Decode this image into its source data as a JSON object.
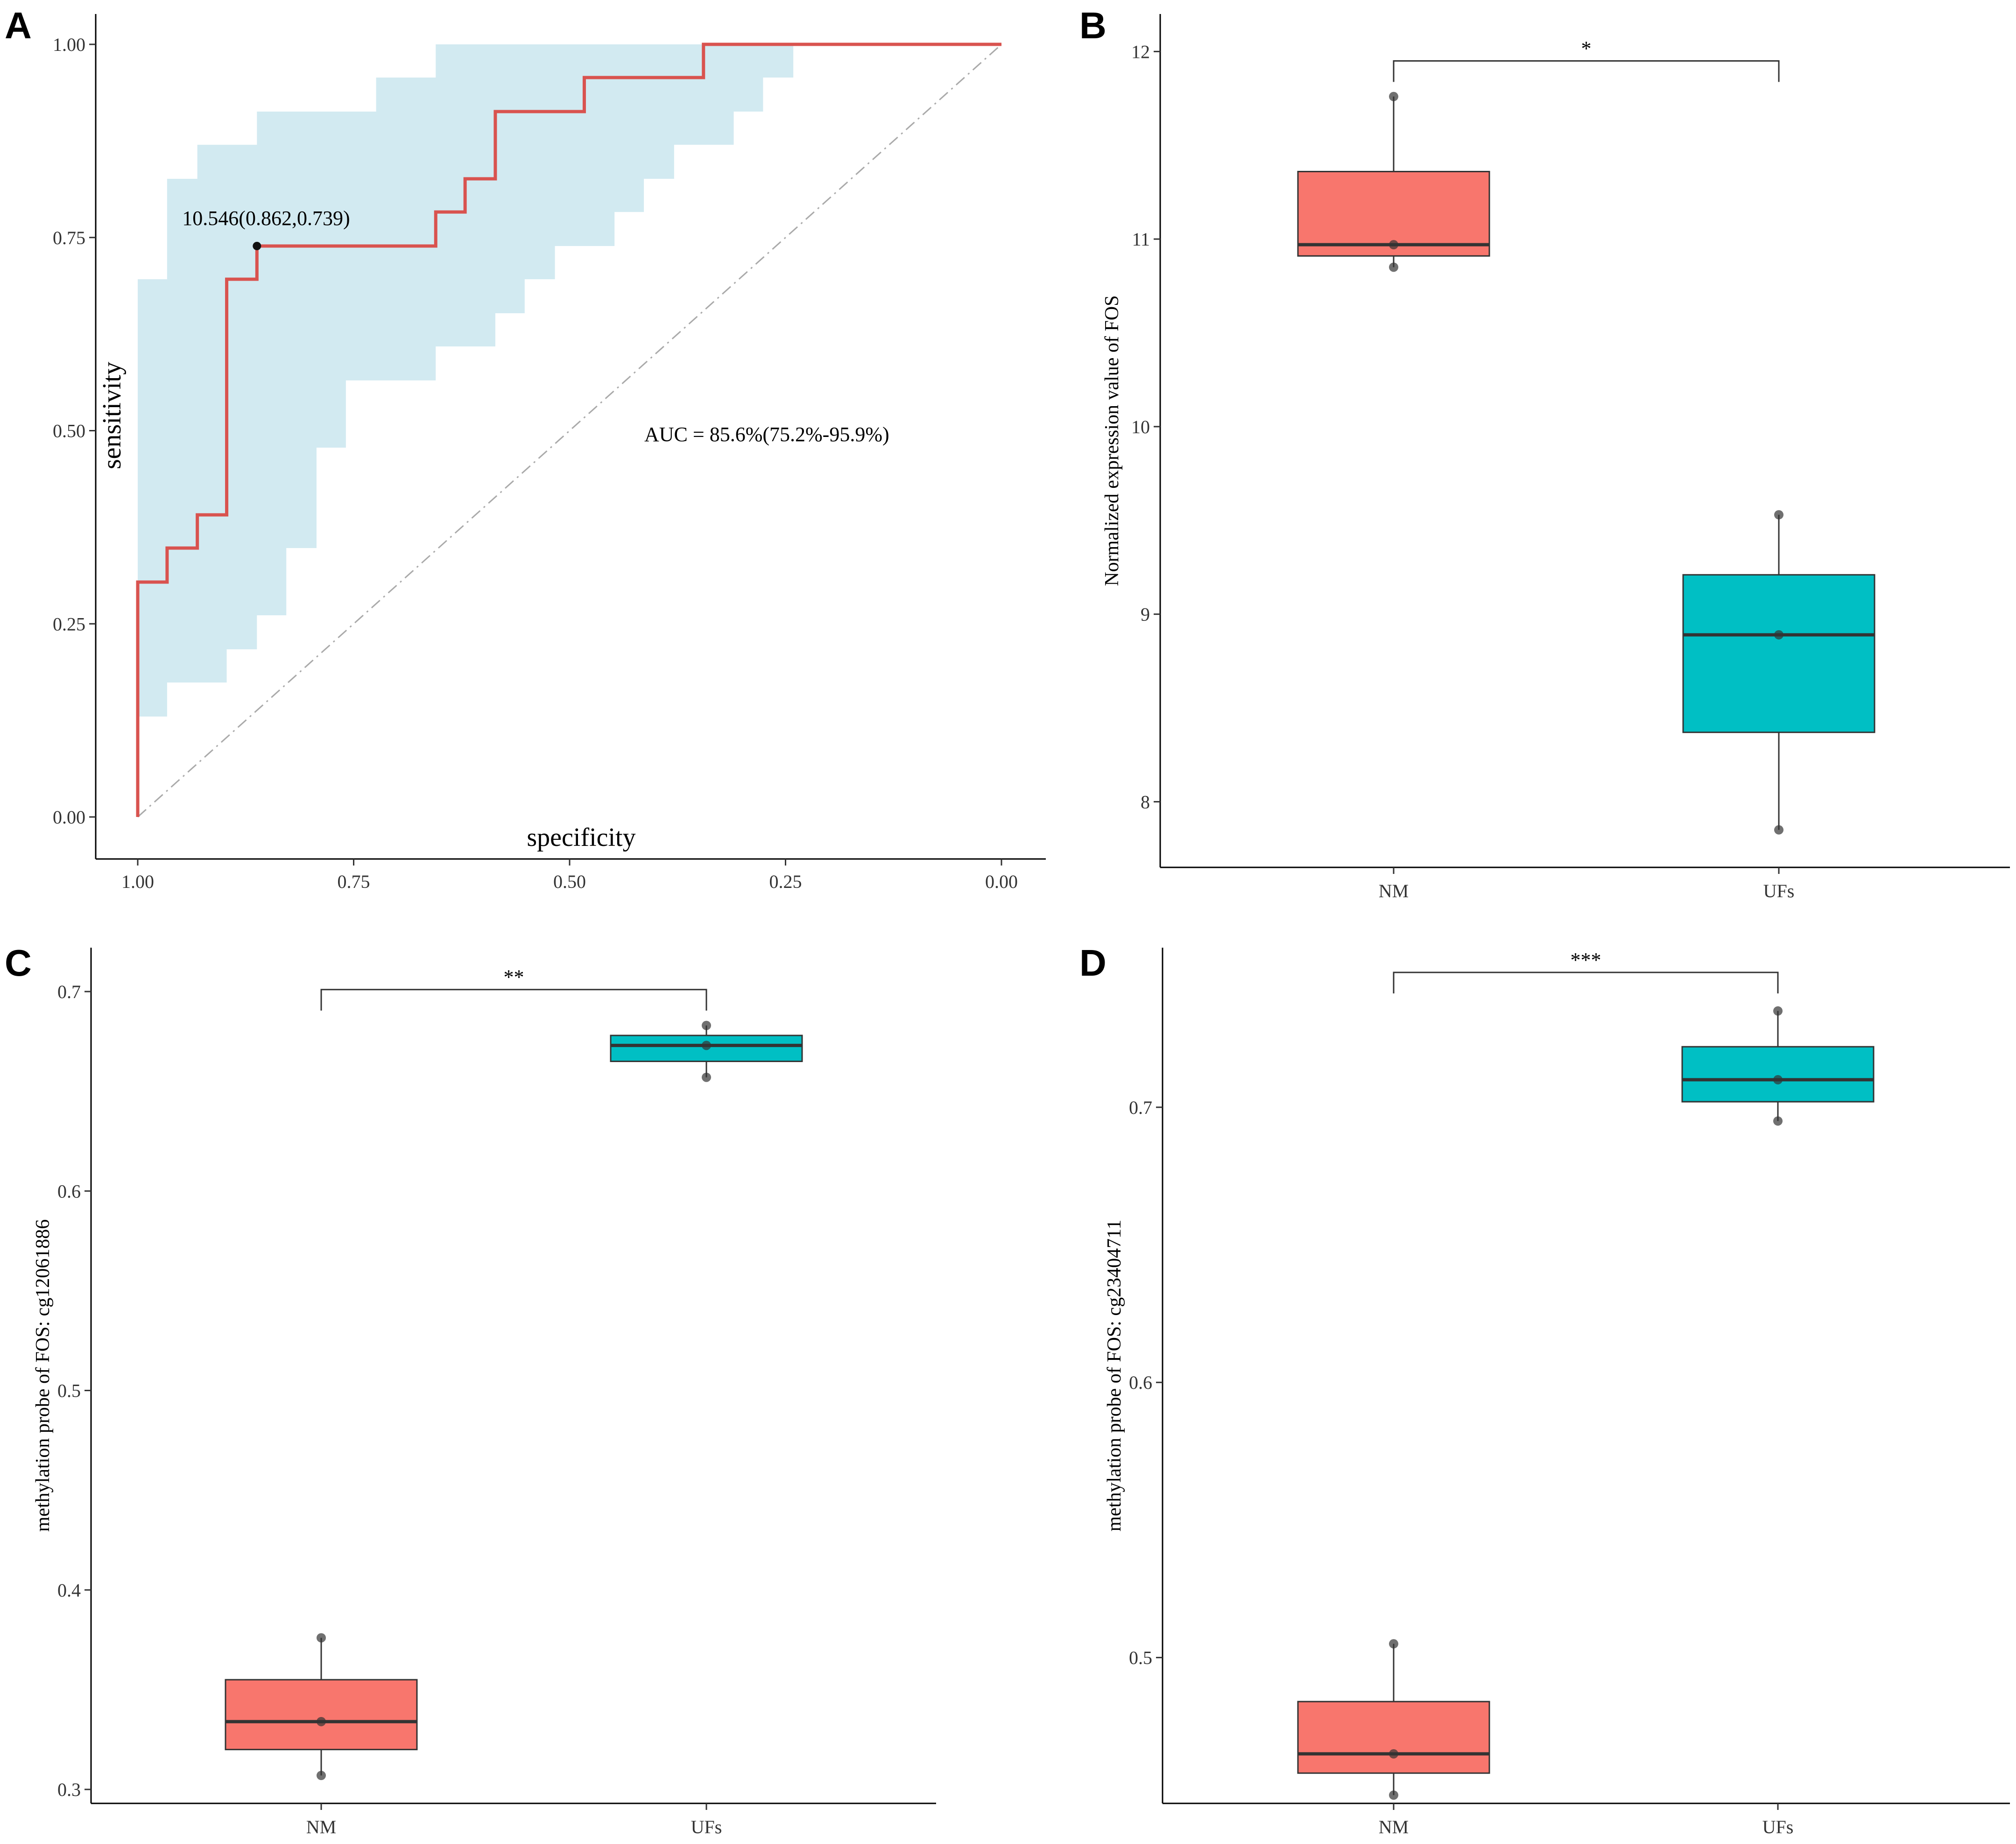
{
  "chart_data": [
    {
      "panel": "A",
      "type": "line",
      "xlabel": "specificity",
      "ylabel": "sensitivity",
      "x_reversed": true,
      "xlim": [
        1.0,
        0.0
      ],
      "ylim": [
        0.0,
        1.0
      ],
      "xticks": [
        "1.00",
        "0.75",
        "0.50",
        "0.25",
        "0.00"
      ],
      "yticks": [
        "0.00",
        "0.25",
        "0.50",
        "0.75",
        "1.00"
      ],
      "xtick_values": [
        1.0,
        0.75,
        0.5,
        0.25,
        0.0
      ],
      "ytick_values": [
        0.0,
        0.25,
        0.5,
        0.75,
        1.0
      ],
      "grid": false,
      "threshold_label": "10.546(0.862,0.739)",
      "threshold_point": {
        "specificity": 0.862,
        "sensitivity": 0.739
      },
      "auc_label": "AUC = 85.6%(75.2%-95.9%)",
      "colors": {
        "roc": "#d9534f",
        "band": "#add8e6",
        "diagonal": "#aaaaaa"
      },
      "roc_curve": [
        [
          1.0,
          0.0
        ],
        [
          1.0,
          0.304
        ],
        [
          0.966,
          0.304
        ],
        [
          0.966,
          0.348
        ],
        [
          0.931,
          0.348
        ],
        [
          0.931,
          0.391
        ],
        [
          0.897,
          0.391
        ],
        [
          0.897,
          0.696
        ],
        [
          0.862,
          0.696
        ],
        [
          0.862,
          0.739
        ],
        [
          0.655,
          0.739
        ],
        [
          0.655,
          0.783
        ],
        [
          0.621,
          0.783
        ],
        [
          0.621,
          0.826
        ],
        [
          0.586,
          0.826
        ],
        [
          0.586,
          0.913
        ],
        [
          0.483,
          0.913
        ],
        [
          0.483,
          0.957
        ],
        [
          0.345,
          0.957
        ],
        [
          0.345,
          1.0
        ],
        [
          0.0,
          1.0
        ]
      ],
      "ci_upper": [
        [
          1.0,
          0.13
        ],
        [
          1.0,
          0.696
        ],
        [
          0.966,
          0.696
        ],
        [
          0.966,
          0.826
        ],
        [
          0.931,
          0.826
        ],
        [
          0.931,
          0.87
        ],
        [
          0.862,
          0.87
        ],
        [
          0.862,
          0.913
        ],
        [
          0.724,
          0.913
        ],
        [
          0.724,
          0.957
        ],
        [
          0.655,
          0.957
        ],
        [
          0.655,
          1.0
        ],
        [
          0.0,
          1.0
        ]
      ],
      "ci_lower": [
        [
          1.0,
          0.13
        ],
        [
          0.966,
          0.13
        ],
        [
          0.966,
          0.174
        ],
        [
          0.897,
          0.174
        ],
        [
          0.897,
          0.217
        ],
        [
          0.862,
          0.217
        ],
        [
          0.862,
          0.261
        ],
        [
          0.828,
          0.261
        ],
        [
          0.828,
          0.348
        ],
        [
          0.793,
          0.348
        ],
        [
          0.793,
          0.478
        ],
        [
          0.759,
          0.478
        ],
        [
          0.759,
          0.565
        ],
        [
          0.655,
          0.565
        ],
        [
          0.655,
          0.609
        ],
        [
          0.621,
          0.609
        ],
        [
          0.586,
          0.609
        ],
        [
          0.586,
          0.652
        ],
        [
          0.552,
          0.652
        ],
        [
          0.552,
          0.696
        ],
        [
          0.517,
          0.696
        ],
        [
          0.517,
          0.739
        ],
        [
          0.448,
          0.739
        ],
        [
          0.448,
          0.783
        ],
        [
          0.414,
          0.783
        ],
        [
          0.414,
          0.826
        ],
        [
          0.379,
          0.826
        ],
        [
          0.379,
          0.87
        ],
        [
          0.31,
          0.87
        ],
        [
          0.31,
          0.913
        ],
        [
          0.276,
          0.913
        ],
        [
          0.276,
          0.957
        ],
        [
          0.241,
          0.957
        ],
        [
          0.241,
          1.0
        ],
        [
          0.2,
          1.0
        ]
      ]
    },
    {
      "panel": "B",
      "type": "box",
      "ylabel": "Normalized expression value of  FOS",
      "categories": [
        "NM",
        "UFs"
      ],
      "ylim": [
        7.65,
        12.2
      ],
      "yticks": [
        "8",
        "9",
        "10",
        "11",
        "12"
      ],
      "ytick_values": [
        8,
        9,
        10,
        11,
        12
      ],
      "significance": "*",
      "colors": [
        "#f8766d",
        "#00bfc4"
      ],
      "boxes": [
        {
          "group": "NM",
          "min": 10.85,
          "q1": 10.91,
          "median": 10.97,
          "q3": 11.36,
          "max": 11.76,
          "points": [
            11.76,
            10.97,
            10.85
          ]
        },
        {
          "group": "UFs",
          "min": 7.85,
          "q1": 8.37,
          "median": 8.89,
          "q3": 9.21,
          "max": 9.53,
          "points": [
            9.53,
            8.89,
            7.85
          ]
        }
      ],
      "bracket_y": 11.95
    },
    {
      "panel": "C",
      "type": "box",
      "ylabel": "methylation probe of FOS: cg12061886",
      "categories": [
        "NM",
        "UFs"
      ],
      "ylim": [
        0.293,
        0.722
      ],
      "yticks": [
        "0.3",
        "0.4",
        "0.5",
        "0.6",
        "0.7"
      ],
      "ytick_values": [
        0.3,
        0.4,
        0.5,
        0.6,
        0.7
      ],
      "significance": "**",
      "colors": [
        "#f8766d",
        "#00bfc4"
      ],
      "boxes": [
        {
          "group": "NM",
          "min": 0.307,
          "q1": 0.32,
          "median": 0.334,
          "q3": 0.355,
          "max": 0.376,
          "points": [
            0.376,
            0.334,
            0.307
          ]
        },
        {
          "group": "UFs",
          "min": 0.657,
          "q1": 0.665,
          "median": 0.673,
          "q3": 0.678,
          "max": 0.683,
          "points": [
            0.683,
            0.673,
            0.657
          ]
        }
      ],
      "bracket_y": 0.701
    },
    {
      "panel": "D",
      "type": "box",
      "ylabel": "methylation probe of FOS: cg23404711",
      "categories": [
        "NM",
        "UFs"
      ],
      "ylim": [
        0.447,
        0.758
      ],
      "yticks": [
        "0.5",
        "0.6",
        "0.7"
      ],
      "ytick_values": [
        0.5,
        0.6,
        0.7
      ],
      "significance": "***",
      "colors": [
        "#f8766d",
        "#00bfc4"
      ],
      "boxes": [
        {
          "group": "NM",
          "min": 0.45,
          "q1": 0.458,
          "median": 0.465,
          "q3": 0.484,
          "max": 0.505,
          "points": [
            0.505,
            0.465,
            0.45
          ]
        },
        {
          "group": "UFs",
          "min": 0.695,
          "q1": 0.702,
          "median": 0.71,
          "q3": 0.722,
          "max": 0.735,
          "points": [
            0.735,
            0.71,
            0.695
          ]
        }
      ],
      "bracket_y": 0.749
    }
  ],
  "panel_letters": [
    "A",
    "B",
    "C",
    "D"
  ]
}
